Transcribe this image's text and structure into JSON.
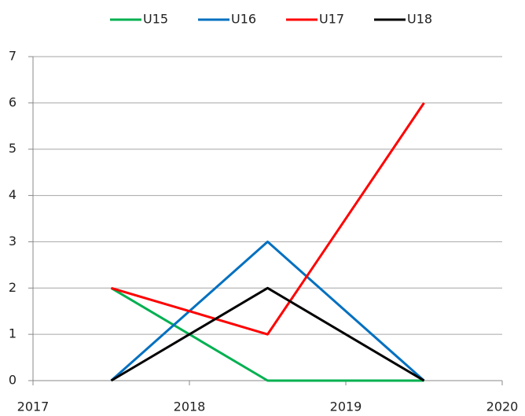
{
  "chart_data": {
    "type": "line",
    "x": [
      2017.5,
      2018.5,
      2019.5
    ],
    "series": [
      {
        "name": "U15",
        "color": "#00b050",
        "values": [
          2,
          0,
          0
        ]
      },
      {
        "name": "U16",
        "color": "#0070c0",
        "values": [
          0,
          3,
          0
        ]
      },
      {
        "name": "U17",
        "color": "#ff0000",
        "values": [
          2,
          1,
          6
        ]
      },
      {
        "name": "U18",
        "color": "#000000",
        "values": [
          0,
          2,
          0
        ]
      }
    ],
    "xlim": [
      2017,
      2020
    ],
    "xticks": [
      2017,
      2018,
      2019,
      2020
    ],
    "ylim": [
      0,
      7
    ],
    "yticks": [
      0,
      1,
      2,
      3,
      4,
      5,
      6,
      7
    ],
    "grid": true,
    "legend": "top"
  }
}
